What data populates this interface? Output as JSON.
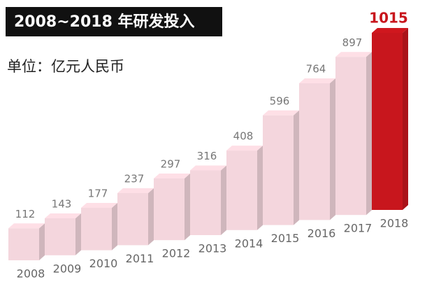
{
  "chart_data": {
    "type": "bar3d",
    "title": "2008~2018 年研发投入",
    "subtitle": "单位：亿元人民币",
    "categories": [
      "2008",
      "2009",
      "2010",
      "2011",
      "2012",
      "2013",
      "2014",
      "2015",
      "2016",
      "2017",
      "2018"
    ],
    "values": [
      112,
      143,
      177,
      237,
      297,
      316,
      408,
      596,
      764,
      897,
      1015
    ],
    "colors": [
      "#f4d6dd",
      "#f4d6dd",
      "#f4d6dd",
      "#f4d6dd",
      "#f4d6dd",
      "#f4d6dd",
      "#f4d6dd",
      "#f4d6dd",
      "#f4d6dd",
      "#f4d6dd",
      "#c8161d"
    ]
  }
}
